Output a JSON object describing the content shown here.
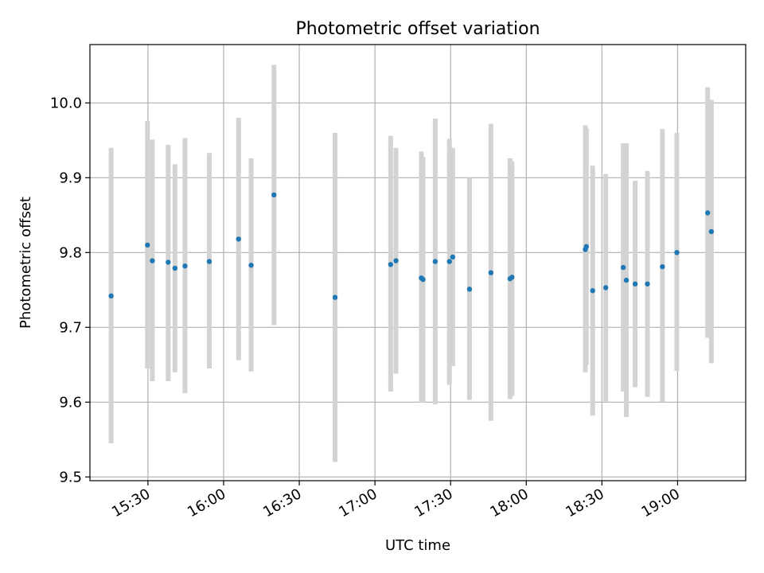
{
  "chart_data": {
    "type": "scatter",
    "title": "Photometric offset variation",
    "xlabel": "UTC time",
    "ylabel": "Photometric offset",
    "xlim": [
      "15:07",
      "19:27"
    ],
    "ylim": [
      9.495,
      10.078
    ],
    "x_ticks": [
      "15:30",
      "16:00",
      "16:30",
      "17:00",
      "17:30",
      "18:00",
      "18:30",
      "19:00"
    ],
    "y_ticks": [
      "9.5",
      "9.6",
      "9.7",
      "9.8",
      "9.9",
      "10.0"
    ],
    "grid": true,
    "colors": {
      "point": "#1f77b4",
      "errorbar": "#d3d3d3",
      "grid": "#b0b0b0"
    },
    "points": [
      {
        "x": "15:15:24",
        "y": 9.742,
        "ylow": 9.545,
        "yhigh": 9.94
      },
      {
        "x": "15:29:49",
        "y": 9.81,
        "ylow": 9.645,
        "yhigh": 9.976
      },
      {
        "x": "15:31:44",
        "y": 9.789,
        "ylow": 9.628,
        "yhigh": 9.951
      },
      {
        "x": "15:38:02",
        "y": 9.787,
        "ylow": 9.628,
        "yhigh": 9.944
      },
      {
        "x": "15:40:43",
        "y": 9.779,
        "ylow": 9.64,
        "yhigh": 9.918
      },
      {
        "x": "15:44:42",
        "y": 9.782,
        "ylow": 9.612,
        "yhigh": 9.953
      },
      {
        "x": "15:54:19",
        "y": 9.788,
        "ylow": 9.645,
        "yhigh": 9.933
      },
      {
        "x": "16:05:56",
        "y": 9.818,
        "ylow": 9.656,
        "yhigh": 9.98
      },
      {
        "x": "16:10:55",
        "y": 9.783,
        "ylow": 9.641,
        "yhigh": 9.926
      },
      {
        "x": "16:19:58",
        "y": 9.877,
        "ylow": 9.703,
        "yhigh": 10.051
      },
      {
        "x": "16:44:12",
        "y": 9.74,
        "ylow": 9.52,
        "yhigh": 9.96
      },
      {
        "x": "17:06:14",
        "y": 9.784,
        "ylow": 9.614,
        "yhigh": 9.956
      },
      {
        "x": "17:08:20",
        "y": 9.789,
        "ylow": 9.638,
        "yhigh": 9.94
      },
      {
        "x": "17:18:23",
        "y": 9.766,
        "ylow": 9.599,
        "yhigh": 9.935
      },
      {
        "x": "17:19:03",
        "y": 9.764,
        "ylow": 9.6,
        "yhigh": 9.928
      },
      {
        "x": "17:23:54",
        "y": 9.788,
        "ylow": 9.597,
        "yhigh": 9.979
      },
      {
        "x": "17:29:32",
        "y": 9.788,
        "ylow": 9.623,
        "yhigh": 9.952
      },
      {
        "x": "17:30:50",
        "y": 9.794,
        "ylow": 9.648,
        "yhigh": 9.94
      },
      {
        "x": "17:37:29",
        "y": 9.751,
        "ylow": 9.603,
        "yhigh": 9.9
      },
      {
        "x": "17:45:59",
        "y": 9.773,
        "ylow": 9.575,
        "yhigh": 9.972
      },
      {
        "x": "17:53:33",
        "y": 9.765,
        "ylow": 9.604,
        "yhigh": 9.926
      },
      {
        "x": "17:54:20",
        "y": 9.767,
        "ylow": 9.608,
        "yhigh": 9.922
      },
      {
        "x": "18:23:25",
        "y": 9.804,
        "ylow": 9.64,
        "yhigh": 9.97
      },
      {
        "x": "18:23:50",
        "y": 9.808,
        "ylow": 9.65,
        "yhigh": 9.966
      },
      {
        "x": "18:26:19",
        "y": 9.749,
        "ylow": 9.582,
        "yhigh": 9.916
      },
      {
        "x": "18:31:31",
        "y": 9.753,
        "ylow": 9.601,
        "yhigh": 9.905
      },
      {
        "x": "18:38:27",
        "y": 9.78,
        "ylow": 9.614,
        "yhigh": 9.946
      },
      {
        "x": "18:39:41",
        "y": 9.763,
        "ylow": 9.58,
        "yhigh": 9.946
      },
      {
        "x": "18:43:10",
        "y": 9.758,
        "ylow": 9.62,
        "yhigh": 9.896
      },
      {
        "x": "18:48:02",
        "y": 9.758,
        "ylow": 9.607,
        "yhigh": 9.909
      },
      {
        "x": "18:53:59",
        "y": 9.781,
        "ylow": 9.6,
        "yhigh": 9.965
      },
      {
        "x": "18:59:42",
        "y": 9.8,
        "ylow": 9.642,
        "yhigh": 9.96
      },
      {
        "x": "19:11:55",
        "y": 9.853,
        "ylow": 9.686,
        "yhigh": 10.021
      },
      {
        "x": "19:13:23",
        "y": 9.828,
        "ylow": 9.652,
        "yhigh": 10.004
      }
    ]
  }
}
